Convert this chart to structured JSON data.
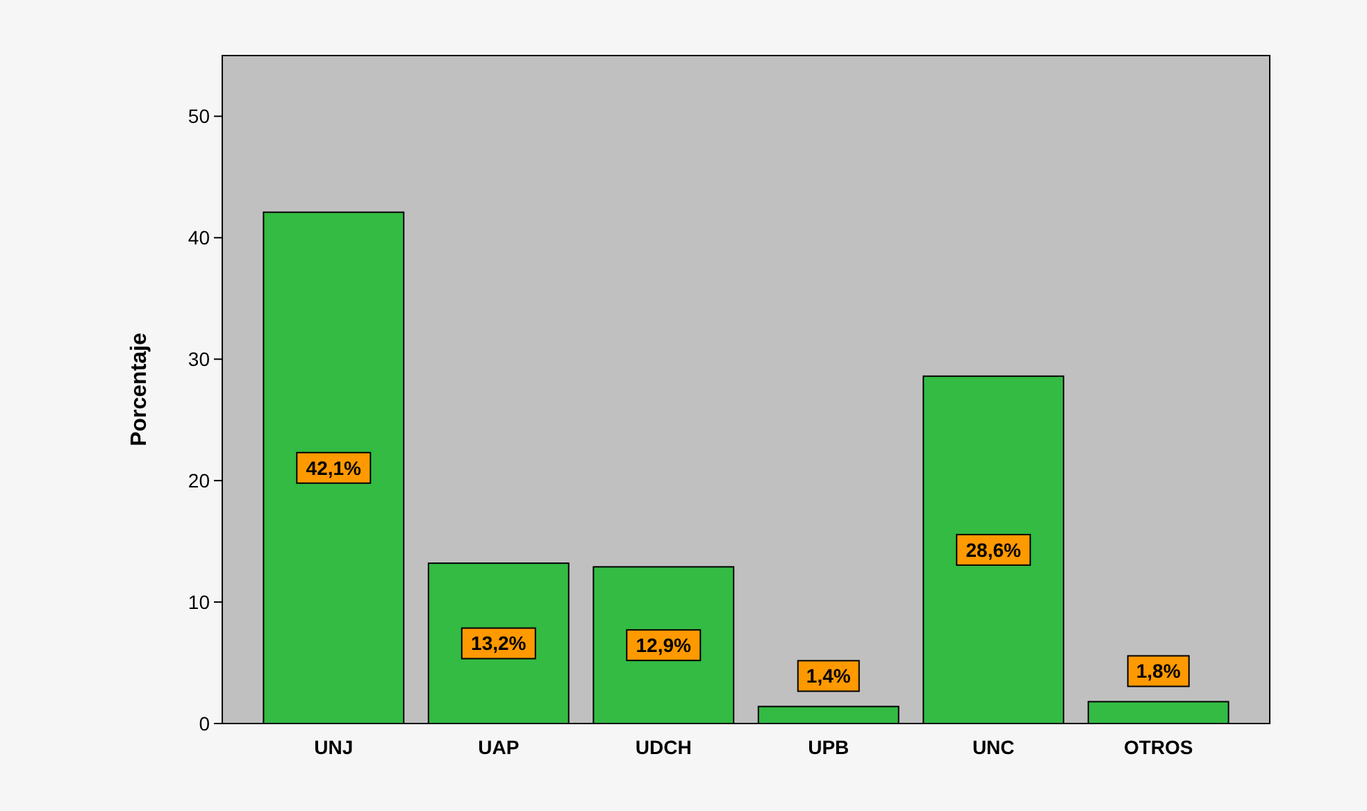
{
  "chart_data": {
    "type": "bar",
    "ylabel": "Porcentaje",
    "categories": [
      "UNJ",
      "UAP",
      "UDCH",
      "UPB",
      "UNC",
      "OTROS"
    ],
    "values": [
      42.1,
      13.2,
      12.9,
      1.4,
      28.6,
      1.8
    ],
    "value_labels": [
      "42,1%",
      "13,2%",
      "12,9%",
      "1,4%",
      "28,6%",
      "1,8%"
    ],
    "color": "#33bb44",
    "ylim": [
      0,
      55
    ],
    "yticks": [
      0,
      10,
      20,
      30,
      40,
      50
    ],
    "grid": false
  }
}
